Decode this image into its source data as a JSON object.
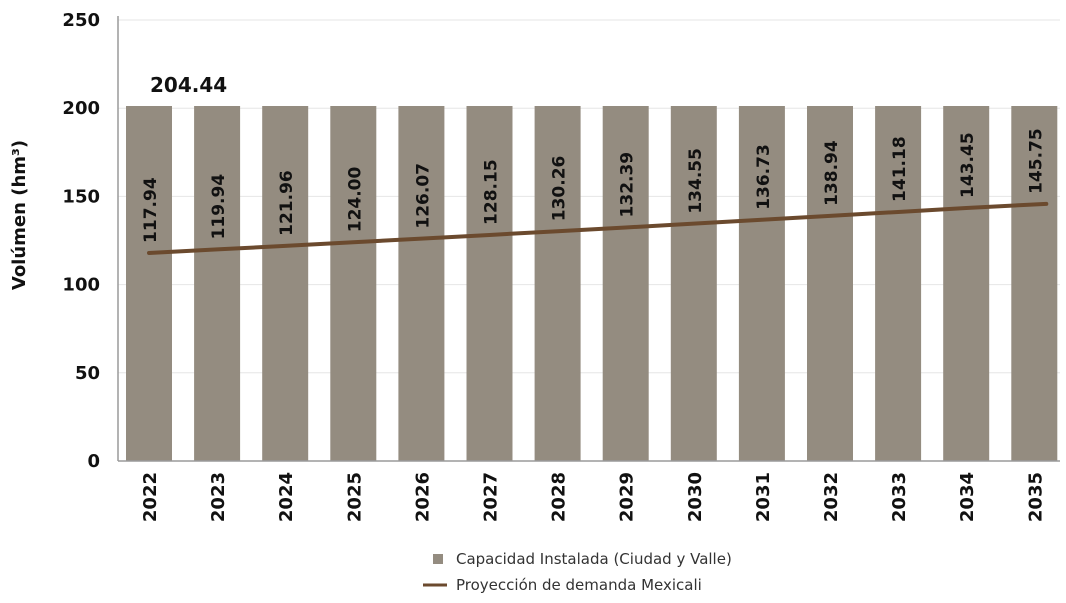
{
  "chart_data": {
    "type": "bar",
    "title": "",
    "xlabel": "",
    "ylabel": "Volúmen (hm³)",
    "ylim": [
      0,
      250
    ],
    "yticks": [
      0,
      50,
      100,
      150,
      200,
      250
    ],
    "grid": true,
    "legend_position": "bottom",
    "categories": [
      "2022",
      "2023",
      "2024",
      "2025",
      "2026",
      "2027",
      "2028",
      "2029",
      "2030",
      "2031",
      "2032",
      "2033",
      "2034",
      "2035"
    ],
    "bar_top_label": "204.44",
    "series": [
      {
        "name": "Capacidad Instalada (Ciudad y Valle)",
        "type": "bar",
        "color": "#948C80",
        "values": [
          204.44,
          204.44,
          204.44,
          204.44,
          204.44,
          204.44,
          204.44,
          204.44,
          204.44,
          204.44,
          204.44,
          204.44,
          204.44,
          204.44
        ]
      },
      {
        "name": "Proyección de demanda Mexicali",
        "type": "line",
        "color": "#6B4A2E",
        "values": [
          117.94,
          119.94,
          121.96,
          124.0,
          126.07,
          128.15,
          130.26,
          132.39,
          134.55,
          136.73,
          138.94,
          141.18,
          143.45,
          145.75
        ],
        "labels": [
          "117.94",
          "119.94",
          "121.96",
          "124.00",
          "126.07",
          "128.15",
          "130.26",
          "132.39",
          "134.55",
          "136.73",
          "138.94",
          "141.18",
          "143.45",
          "145.75"
        ]
      }
    ]
  }
}
